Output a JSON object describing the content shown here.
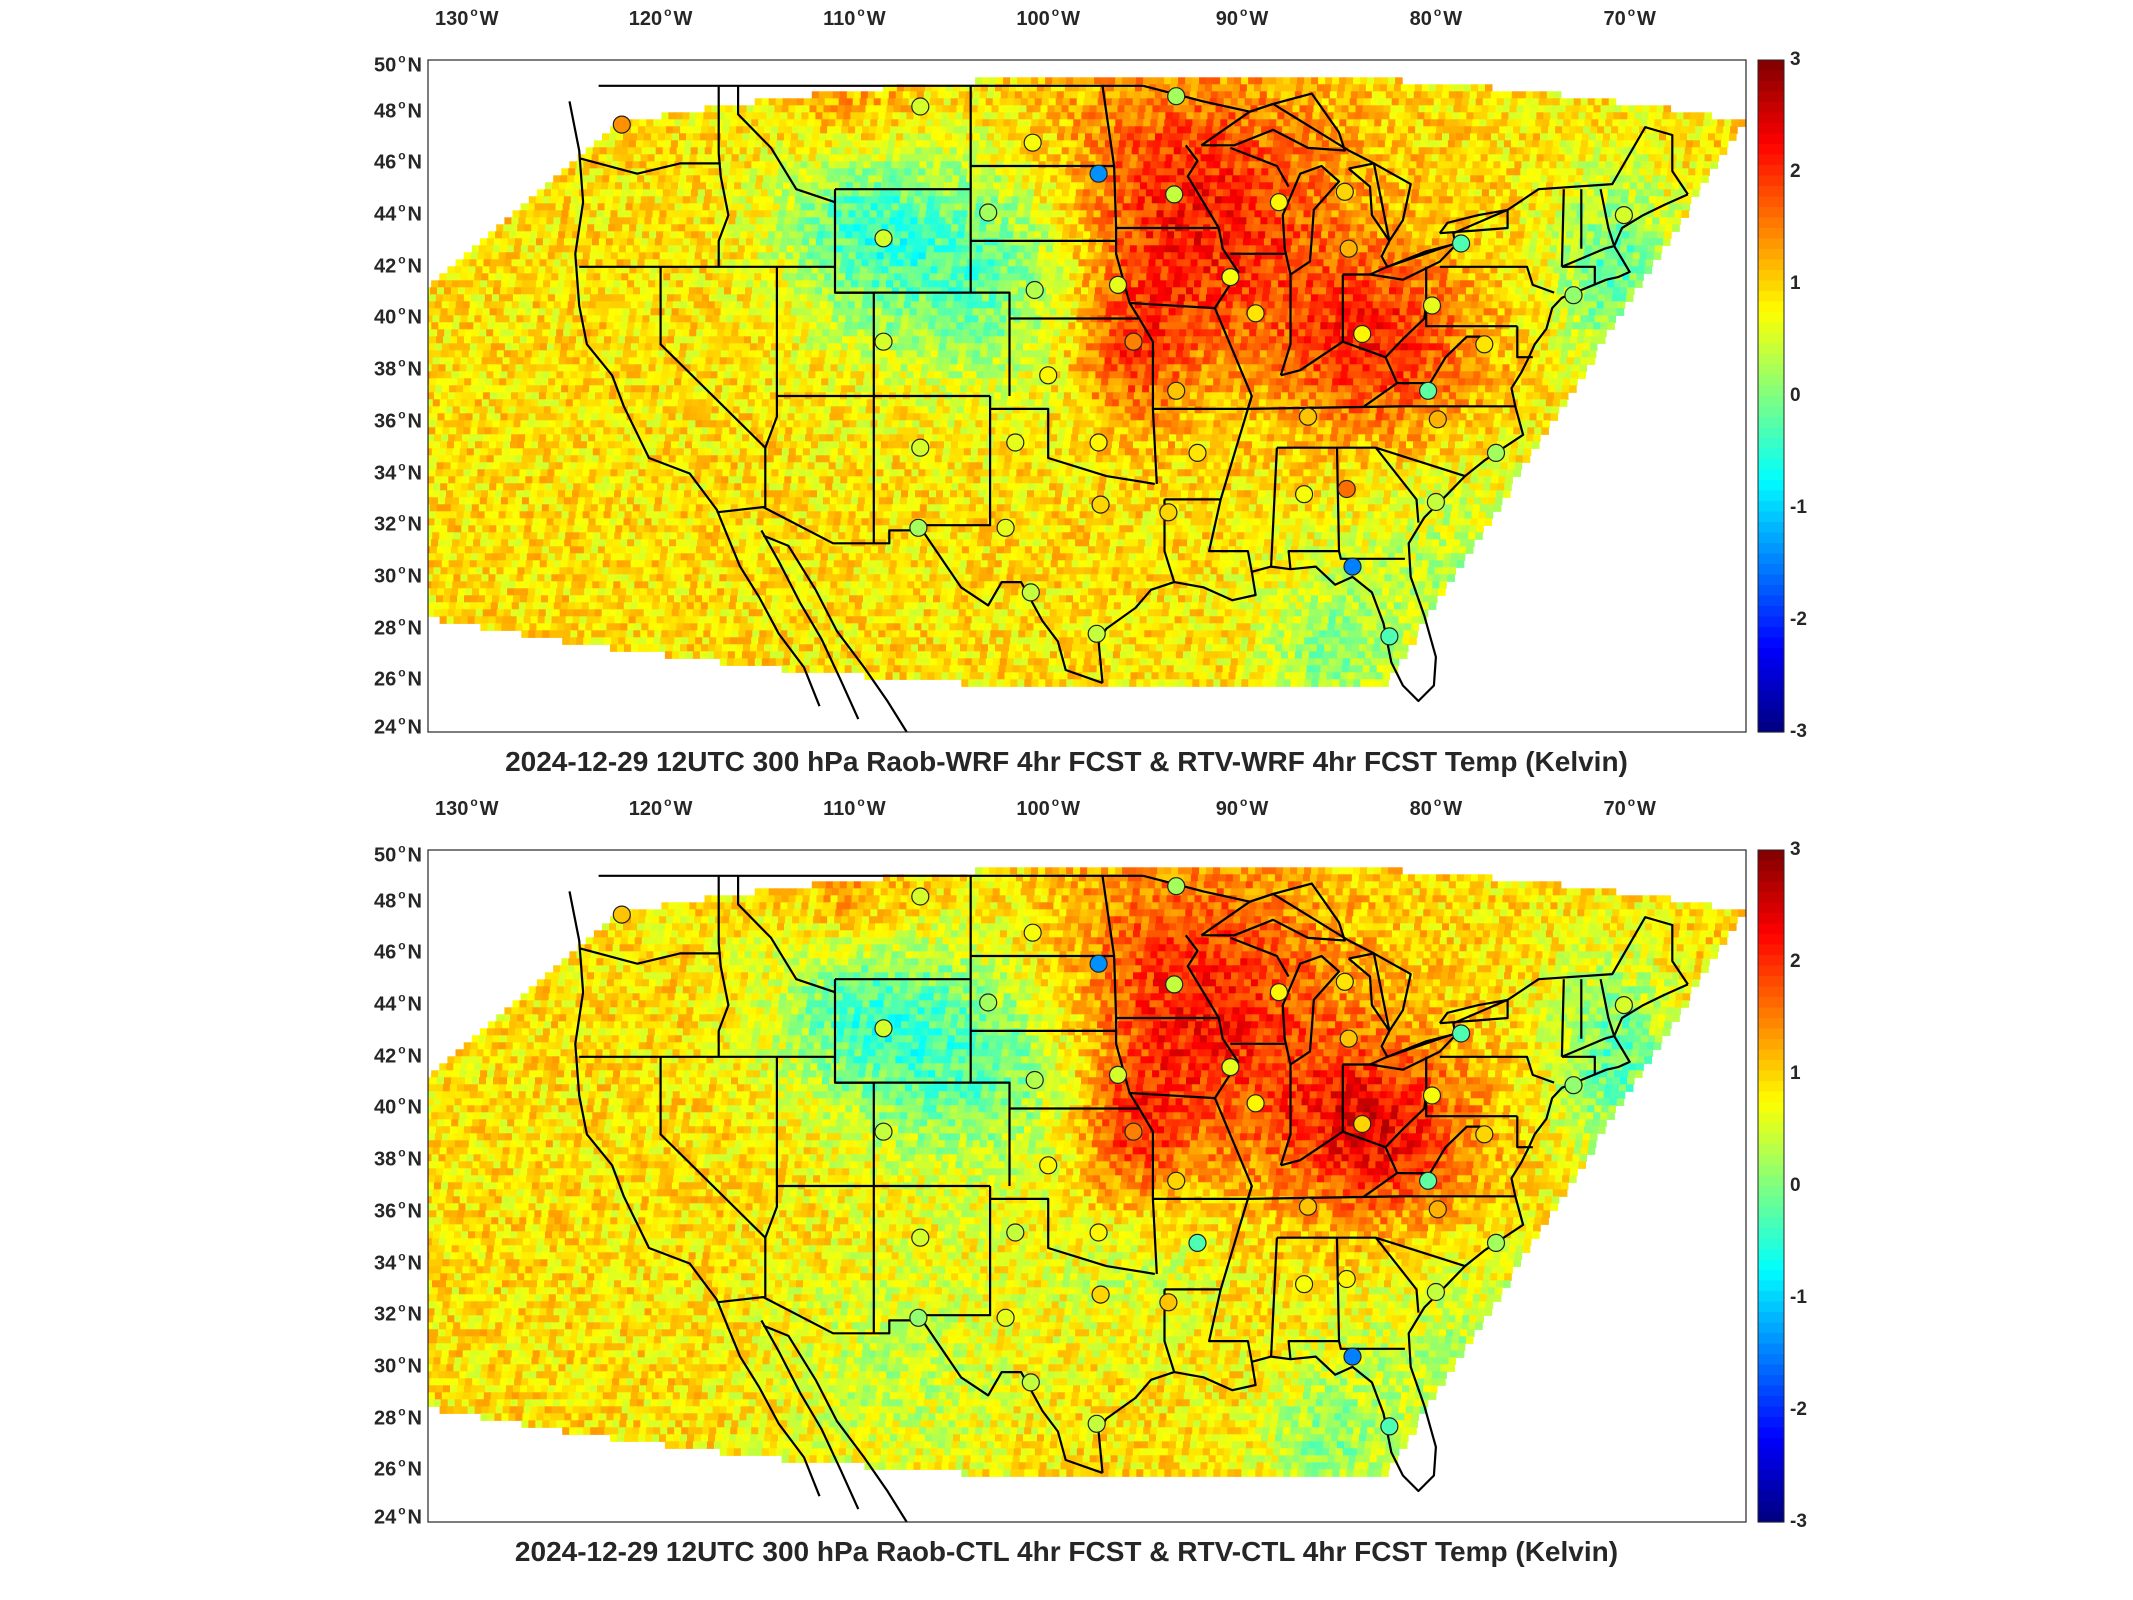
{
  "panels": [
    {
      "title": "2024-12-29 12UTC 300 hPa Raob-WRF 4hr FCST & RTV-WRF 4hr FCST Temp (Kelvin)",
      "stations_variant": "wrf"
    },
    {
      "title": "2024-12-29 12UTC 300 hPa Raob-CTL 4hr FCST & RTV-CTL 4hr FCST Temp (Kelvin)",
      "stations_variant": "ctl"
    }
  ],
  "lon_labels": [
    {
      "value": "130",
      "hemi": "W"
    },
    {
      "value": "120",
      "hemi": "W"
    },
    {
      "value": "110",
      "hemi": "W"
    },
    {
      "value": "100",
      "hemi": "W"
    },
    {
      "value": "90",
      "hemi": "W"
    },
    {
      "value": "80",
      "hemi": "W"
    },
    {
      "value": "70",
      "hemi": "W"
    }
  ],
  "lat_labels": [
    {
      "value": "50",
      "hemi": "N"
    },
    {
      "value": "48",
      "hemi": "N"
    },
    {
      "value": "46",
      "hemi": "N"
    },
    {
      "value": "44",
      "hemi": "N"
    },
    {
      "value": "42",
      "hemi": "N"
    },
    {
      "value": "40",
      "hemi": "N"
    },
    {
      "value": "38",
      "hemi": "N"
    },
    {
      "value": "36",
      "hemi": "N"
    },
    {
      "value": "34",
      "hemi": "N"
    },
    {
      "value": "32",
      "hemi": "N"
    },
    {
      "value": "30",
      "hemi": "N"
    },
    {
      "value": "28",
      "hemi": "N"
    },
    {
      "value": "26",
      "hemi": "N"
    },
    {
      "value": "24",
      "hemi": "N"
    }
  ],
  "colorbar": {
    "min": -3,
    "max": 3,
    "tick_labels": [
      "3",
      "2",
      "1",
      "0",
      "-1",
      "-2",
      "-3"
    ],
    "colormap": "jet",
    "units": "Kelvin"
  },
  "map": {
    "lon_range": [
      -132,
      -64
    ],
    "lat_range": [
      24,
      50
    ]
  },
  "stations": [
    {
      "lat": 47.5,
      "lon": -122.0,
      "wrf": 1.4,
      "ctl": 1.1
    },
    {
      "lat": 48.2,
      "lon": -106.6,
      "wrf": 0.5,
      "ctl": 0.5
    },
    {
      "lat": 46.8,
      "lon": -100.8,
      "wrf": 0.7,
      "ctl": 0.7
    },
    {
      "lat": 48.6,
      "lon": -93.4,
      "wrf": 0.2,
      "ctl": 0.2
    },
    {
      "lat": 45.6,
      "lon": -97.4,
      "wrf": -1.4,
      "ctl": -1.4
    },
    {
      "lat": 44.8,
      "lon": -93.5,
      "wrf": 0.4,
      "ctl": 0.4
    },
    {
      "lat": 44.5,
      "lon": -88.1,
      "wrf": 0.8,
      "ctl": 0.8
    },
    {
      "lat": 44.9,
      "lon": -84.7,
      "wrf": 1.0,
      "ctl": 0.9
    },
    {
      "lat": 42.7,
      "lon": -84.5,
      "wrf": 1.2,
      "ctl": 1.1
    },
    {
      "lat": 42.9,
      "lon": -78.7,
      "wrf": -0.3,
      "ctl": -0.3
    },
    {
      "lat": 44.0,
      "lon": -70.3,
      "wrf": 0.5,
      "ctl": 0.5
    },
    {
      "lat": 40.9,
      "lon": -72.9,
      "wrf": 0.1,
      "ctl": 0.1
    },
    {
      "lat": 40.5,
      "lon": -80.2,
      "wrf": 0.6,
      "ctl": 0.7
    },
    {
      "lat": 39.0,
      "lon": -77.5,
      "wrf": 0.9,
      "ctl": 1.0
    },
    {
      "lat": 37.2,
      "lon": -80.4,
      "wrf": -0.2,
      "ctl": -0.2
    },
    {
      "lat": 36.1,
      "lon": -79.9,
      "wrf": 1.2,
      "ctl": 1.2
    },
    {
      "lat": 34.8,
      "lon": -76.9,
      "wrf": 0.2,
      "ctl": 0.2
    },
    {
      "lat": 32.9,
      "lon": -80.0,
      "wrf": 0.4,
      "ctl": 0.4
    },
    {
      "lat": 33.4,
      "lon": -84.6,
      "wrf": 1.6,
      "ctl": 0.8
    },
    {
      "lat": 33.2,
      "lon": -86.8,
      "wrf": 0.7,
      "ctl": 0.7
    },
    {
      "lat": 36.2,
      "lon": -86.6,
      "wrf": 1.1,
      "ctl": 1.1
    },
    {
      "lat": 39.4,
      "lon": -83.8,
      "wrf": 0.8,
      "ctl": 1.0
    },
    {
      "lat": 40.2,
      "lon": -89.3,
      "wrf": 0.9,
      "ctl": 0.8
    },
    {
      "lat": 41.6,
      "lon": -90.6,
      "wrf": 0.7,
      "ctl": 0.6
    },
    {
      "lat": 37.2,
      "lon": -93.4,
      "wrf": 1.1,
      "ctl": 1.0
    },
    {
      "lat": 39.1,
      "lon": -95.6,
      "wrf": 1.5,
      "ctl": 1.5
    },
    {
      "lat": 41.3,
      "lon": -96.4,
      "wrf": 0.6,
      "ctl": 0.5
    },
    {
      "lat": 41.1,
      "lon": -100.7,
      "wrf": 0.3,
      "ctl": 0.3
    },
    {
      "lat": 44.1,
      "lon": -103.1,
      "wrf": 0.2,
      "ctl": 0.2
    },
    {
      "lat": 43.1,
      "lon": -108.5,
      "wrf": 0.5,
      "ctl": 0.5
    },
    {
      "lat": 39.1,
      "lon": -108.5,
      "wrf": 0.5,
      "ctl": 0.4
    },
    {
      "lat": 37.8,
      "lon": -100.0,
      "wrf": 0.8,
      "ctl": 0.8
    },
    {
      "lat": 35.0,
      "lon": -106.6,
      "wrf": 0.5,
      "ctl": 0.5
    },
    {
      "lat": 35.2,
      "lon": -101.7,
      "wrf": 0.6,
      "ctl": 0.4
    },
    {
      "lat": 35.2,
      "lon": -97.4,
      "wrf": 0.8,
      "ctl": 0.8
    },
    {
      "lat": 34.8,
      "lon": -92.3,
      "wrf": 0.9,
      "ctl": -0.3
    },
    {
      "lat": 32.5,
      "lon": -93.8,
      "wrf": 1.0,
      "ctl": 1.1
    },
    {
      "lat": 32.8,
      "lon": -97.3,
      "wrf": 1.0,
      "ctl": 1.0
    },
    {
      "lat": 31.9,
      "lon": -106.7,
      "wrf": 0.2,
      "ctl": 0.1
    },
    {
      "lat": 31.9,
      "lon": -102.2,
      "wrf": 0.6,
      "ctl": 0.6
    },
    {
      "lat": 29.4,
      "lon": -100.9,
      "wrf": 0.4,
      "ctl": 0.4
    },
    {
      "lat": 27.8,
      "lon": -97.5,
      "wrf": 0.4,
      "ctl": 0.4
    },
    {
      "lat": 30.4,
      "lon": -84.3,
      "wrf": -1.5,
      "ctl": -1.5
    },
    {
      "lat": 27.7,
      "lon": -82.4,
      "wrf": -0.3,
      "ctl": -0.3
    }
  ]
}
